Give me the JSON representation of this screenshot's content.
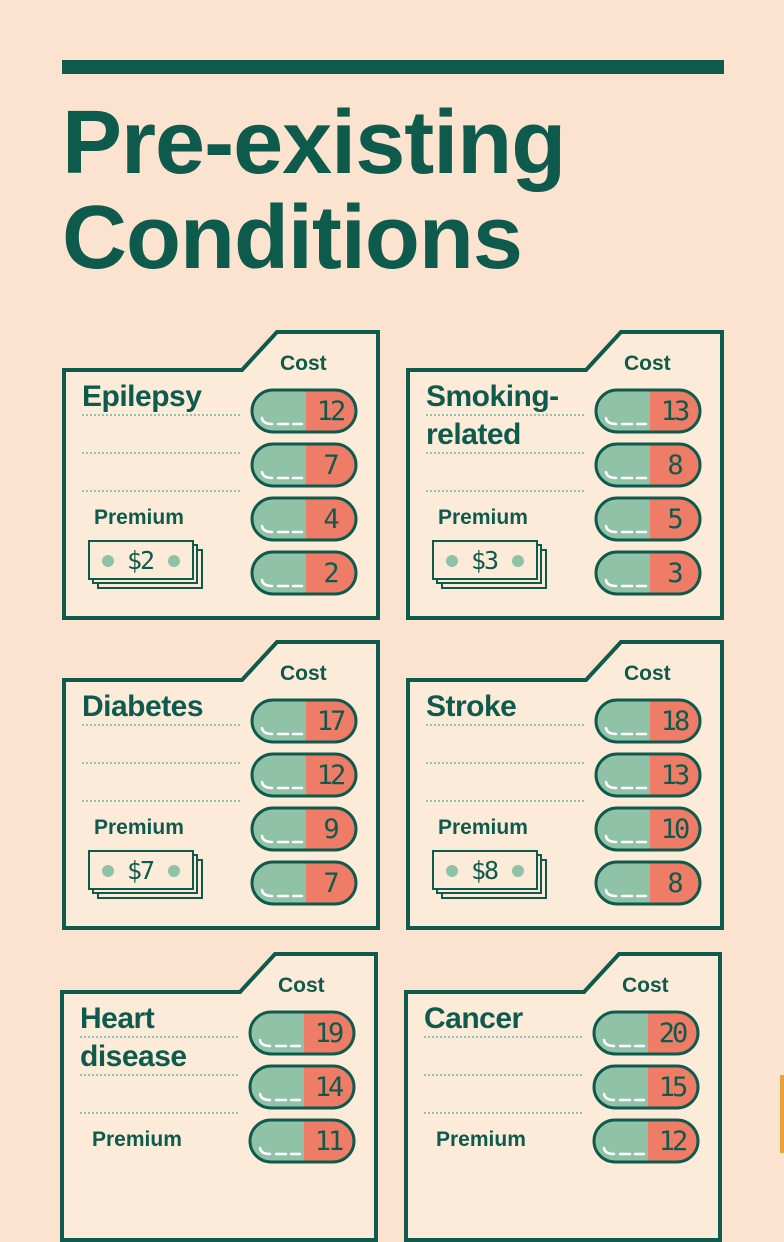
{
  "title": {
    "line1": "Pre-existing",
    "line2": "Conditions"
  },
  "cost_label": "Cost",
  "premium_label": "Premium",
  "colors": {
    "background": "#fbe3cf",
    "ink": "#0e5a4c",
    "pill_green": "#90c2a8",
    "pill_red": "#ef7c66",
    "paper": "#fdebd9"
  },
  "cards": [
    {
      "name": "Epilepsy",
      "name_line2": "",
      "costs": [
        "12",
        "7",
        "4",
        "2"
      ],
      "premium": "$2"
    },
    {
      "name": "Smoking-",
      "name_line2": "related",
      "costs": [
        "13",
        "8",
        "5",
        "3"
      ],
      "premium": "$3"
    },
    {
      "name": "Diabetes",
      "name_line2": "",
      "costs": [
        "17",
        "12",
        "9",
        "7"
      ],
      "premium": "$7"
    },
    {
      "name": "Stroke",
      "name_line2": "",
      "costs": [
        "18",
        "13",
        "10",
        "8"
      ],
      "premium": "$8"
    },
    {
      "name": "Heart",
      "name_line2": "disease",
      "costs": [
        "19",
        "14",
        "11"
      ],
      "premium": ""
    },
    {
      "name": "Cancer",
      "name_line2": "",
      "costs": [
        "20",
        "15",
        "12"
      ],
      "premium": ""
    }
  ]
}
